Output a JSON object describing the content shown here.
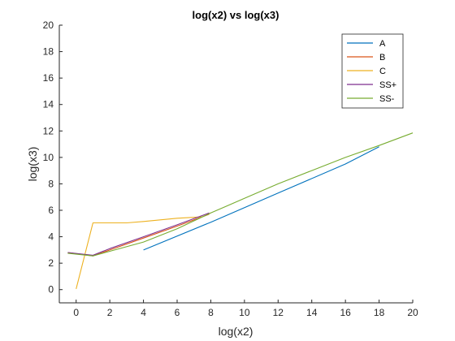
{
  "chart_data": {
    "type": "line",
    "title": "log(x2) vs log(x3)",
    "xlabel": "log(x2)",
    "ylabel": "log(x3)",
    "xlim": [
      -1,
      20
    ],
    "ylim": [
      -1,
      20
    ],
    "x_ticks": [
      0,
      2,
      4,
      6,
      8,
      10,
      12,
      14,
      16,
      18,
      20
    ],
    "y_ticks": [
      0,
      2,
      4,
      6,
      8,
      10,
      12,
      14,
      16,
      18,
      20
    ],
    "grid": false,
    "legend_position": "top-right",
    "series": [
      {
        "name": "A",
        "color": "#0072BD",
        "points": [
          [
            4,
            3.0
          ],
          [
            8,
            5.1
          ],
          [
            12,
            7.3
          ],
          [
            16,
            9.5
          ],
          [
            18,
            10.8
          ]
        ]
      },
      {
        "name": "B",
        "color": "#D95319",
        "points": [
          [
            -0.5,
            2.8
          ],
          [
            1,
            2.55
          ],
          [
            2,
            3.0
          ],
          [
            4,
            3.9
          ],
          [
            6,
            4.8
          ],
          [
            7.9,
            5.7
          ]
        ]
      },
      {
        "name": "C",
        "color": "#EDB120",
        "points": [
          [
            0,
            0.05
          ],
          [
            1,
            5.05
          ],
          [
            2,
            5.05
          ],
          [
            3,
            5.05
          ],
          [
            4,
            5.15
          ],
          [
            6,
            5.4
          ],
          [
            7.5,
            5.5
          ],
          [
            8,
            5.8
          ]
        ]
      },
      {
        "name": "SS+",
        "color": "#7E2F8E",
        "points": [
          [
            -0.5,
            2.8
          ],
          [
            1,
            2.6
          ],
          [
            2,
            3.1
          ],
          [
            4,
            4.0
          ],
          [
            6,
            4.9
          ],
          [
            7.9,
            5.8
          ]
        ]
      },
      {
        "name": "SS-",
        "color": "#77AC30",
        "points": [
          [
            -0.5,
            2.75
          ],
          [
            1,
            2.55
          ],
          [
            2,
            2.9
          ],
          [
            4,
            3.6
          ],
          [
            6,
            4.6
          ],
          [
            8,
            5.8
          ],
          [
            10,
            6.9
          ],
          [
            12,
            8.0
          ],
          [
            14,
            9.0
          ],
          [
            16,
            10.0
          ],
          [
            18,
            10.9
          ],
          [
            20,
            11.85
          ]
        ]
      }
    ]
  }
}
